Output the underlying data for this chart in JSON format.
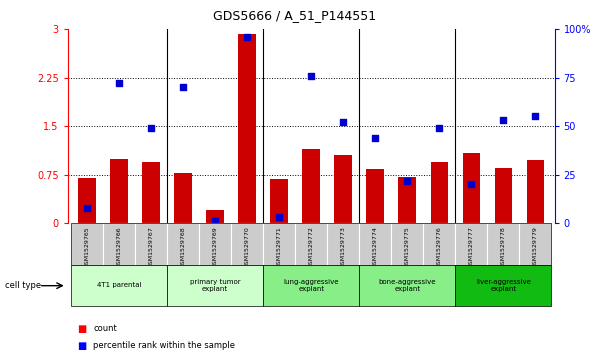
{
  "title": "GDS5666 / A_51_P144551",
  "samples": [
    "GSM1529765",
    "GSM1529766",
    "GSM1529767",
    "GSM1529768",
    "GSM1529769",
    "GSM1529770",
    "GSM1529771",
    "GSM1529772",
    "GSM1529773",
    "GSM1529774",
    "GSM1529775",
    "GSM1529776",
    "GSM1529777",
    "GSM1529778",
    "GSM1529779"
  ],
  "counts": [
    0.7,
    1.0,
    0.95,
    0.78,
    0.2,
    2.93,
    0.68,
    1.15,
    1.05,
    0.84,
    0.72,
    0.94,
    1.08,
    0.85,
    0.98
  ],
  "percentiles": [
    8,
    72,
    49,
    70,
    1,
    96,
    3,
    76,
    52,
    44,
    22,
    49,
    20,
    53,
    55
  ],
  "bar_color": "#cc0000",
  "dot_color": "#0000cc",
  "ylim_left": [
    0,
    3.0
  ],
  "ylim_right": [
    0,
    100
  ],
  "yticks_left": [
    0,
    0.75,
    1.5,
    2.25,
    3.0
  ],
  "yticks_left_labels": [
    "0",
    "0.75",
    "1.5",
    "2.25",
    "3"
  ],
  "yticks_right": [
    0,
    25,
    50,
    75,
    100
  ],
  "yticks_right_labels": [
    "0",
    "25",
    "50",
    "75",
    "100%"
  ],
  "bg_color_sample": "#cccccc",
  "ct_configs": [
    {
      "label": "4T1 parental",
      "start": 0,
      "end": 2,
      "color": "#ccffcc"
    },
    {
      "label": "primary tumor\nexplant",
      "start": 3,
      "end": 5,
      "color": "#ccffcc"
    },
    {
      "label": "lung-aggressive\nexplant",
      "start": 6,
      "end": 8,
      "color": "#88ee88"
    },
    {
      "label": "bone-aggressive\nexplant",
      "start": 9,
      "end": 11,
      "color": "#88ee88"
    },
    {
      "label": "liver-aggressive\nexplant",
      "start": 12,
      "end": 14,
      "color": "#11bb11"
    }
  ],
  "group_boundaries": [
    2.5,
    5.5,
    8.5,
    11.5
  ],
  "dotted_lines": [
    0.75,
    1.5,
    2.25
  ]
}
